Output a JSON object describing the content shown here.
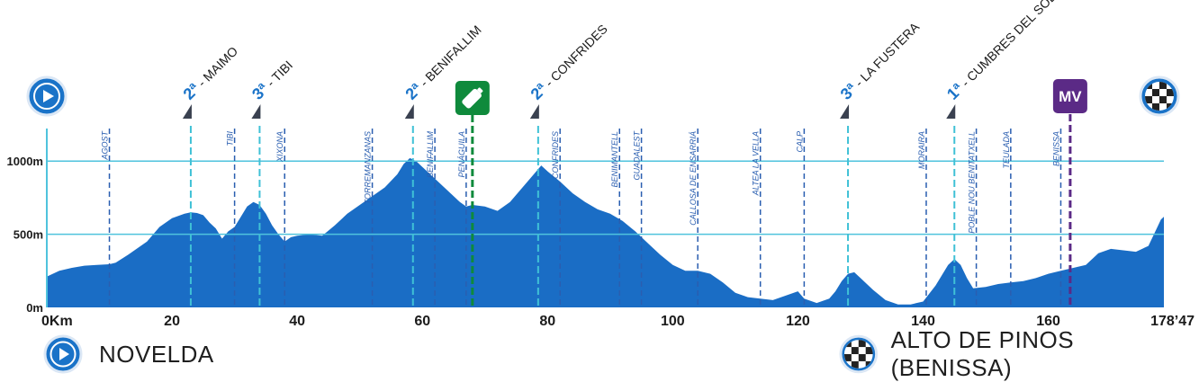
{
  "chart_data": {
    "type": "area",
    "title": "",
    "xlabel": "",
    "ylabel": "",
    "xlim": [
      0,
      178.47
    ],
    "ylim": [
      0,
      1200
    ],
    "x_ticks": [
      {
        "value": 0,
        "label": "0Km"
      },
      {
        "value": 20,
        "label": "20"
      },
      {
        "value": 40,
        "label": "40"
      },
      {
        "value": 60,
        "label": "60"
      },
      {
        "value": 80,
        "label": "80"
      },
      {
        "value": 100,
        "label": "100"
      },
      {
        "value": 120,
        "label": "120"
      },
      {
        "value": 140,
        "label": "140"
      },
      {
        "value": 160,
        "label": "160"
      },
      {
        "value": 178.47,
        "label": "178’47"
      }
    ],
    "y_ticks": [
      {
        "value": 0,
        "label": "0m"
      },
      {
        "value": 500,
        "label": "500m"
      },
      {
        "value": 1000,
        "label": "1000m"
      }
    ],
    "gridlines": [
      500,
      1000
    ],
    "profile": [
      [
        0,
        210
      ],
      [
        2,
        250
      ],
      [
        4,
        270
      ],
      [
        6,
        285
      ],
      [
        8,
        290
      ],
      [
        10,
        295
      ],
      [
        11,
        305
      ],
      [
        13,
        360
      ],
      [
        16,
        450
      ],
      [
        18,
        550
      ],
      [
        20,
        610
      ],
      [
        22,
        640
      ],
      [
        23,
        650
      ],
      [
        24,
        645
      ],
      [
        25,
        630
      ],
      [
        26,
        580
      ],
      [
        27,
        540
      ],
      [
        28,
        470
      ],
      [
        29,
        520
      ],
      [
        30,
        550
      ],
      [
        31,
        620
      ],
      [
        32,
        690
      ],
      [
        33,
        720
      ],
      [
        34,
        700
      ],
      [
        35,
        640
      ],
      [
        36,
        560
      ],
      [
        37,
        500
      ],
      [
        38,
        450
      ],
      [
        39,
        480
      ],
      [
        40,
        490
      ],
      [
        42,
        500
      ],
      [
        44,
        490
      ],
      [
        46,
        560
      ],
      [
        48,
        640
      ],
      [
        50,
        700
      ],
      [
        52,
        760
      ],
      [
        54,
        820
      ],
      [
        56,
        910
      ],
      [
        57,
        980
      ],
      [
        58,
        1020
      ],
      [
        59,
        1000
      ],
      [
        60,
        960
      ],
      [
        62,
        880
      ],
      [
        64,
        800
      ],
      [
        66,
        720
      ],
      [
        67,
        690
      ],
      [
        68,
        700
      ],
      [
        70,
        690
      ],
      [
        72,
        660
      ],
      [
        74,
        720
      ],
      [
        76,
        820
      ],
      [
        78,
        920
      ],
      [
        79,
        970
      ],
      [
        80,
        930
      ],
      [
        82,
        860
      ],
      [
        84,
        780
      ],
      [
        86,
        720
      ],
      [
        88,
        670
      ],
      [
        90,
        640
      ],
      [
        92,
        590
      ],
      [
        94,
        520
      ],
      [
        96,
        440
      ],
      [
        98,
        360
      ],
      [
        100,
        290
      ],
      [
        102,
        250
      ],
      [
        104,
        250
      ],
      [
        106,
        230
      ],
      [
        108,
        170
      ],
      [
        110,
        100
      ],
      [
        112,
        70
      ],
      [
        114,
        60
      ],
      [
        116,
        50
      ],
      [
        118,
        80
      ],
      [
        120,
        110
      ],
      [
        121,
        60
      ],
      [
        123,
        30
      ],
      [
        125,
        60
      ],
      [
        126,
        110
      ],
      [
        127,
        180
      ],
      [
        128,
        230
      ],
      [
        129,
        240
      ],
      [
        130,
        200
      ],
      [
        132,
        120
      ],
      [
        134,
        50
      ],
      [
        136,
        20
      ],
      [
        138,
        20
      ],
      [
        140,
        40
      ],
      [
        142,
        150
      ],
      [
        144,
        290
      ],
      [
        145,
        330
      ],
      [
        146,
        290
      ],
      [
        147,
        200
      ],
      [
        148,
        130
      ],
      [
        150,
        140
      ],
      [
        152,
        160
      ],
      [
        154,
        170
      ],
      [
        156,
        180
      ],
      [
        158,
        200
      ],
      [
        160,
        230
      ],
      [
        162,
        250
      ],
      [
        164,
        270
      ],
      [
        166,
        290
      ],
      [
        168,
        370
      ],
      [
        170,
        400
      ],
      [
        172,
        390
      ],
      [
        174,
        380
      ],
      [
        176,
        420
      ],
      [
        178,
        600
      ],
      [
        178.47,
        620
      ]
    ],
    "towns": [
      {
        "km": 10,
        "name": "AGOST"
      },
      {
        "km": 30,
        "name": "TIBI"
      },
      {
        "km": 38,
        "name": "XIXONA"
      },
      {
        "km": 52,
        "name": "TORREMANZANAS"
      },
      {
        "km": 62,
        "name": "BENIFALLIM"
      },
      {
        "km": 67,
        "name": "PENÁGUILA"
      },
      {
        "km": 82,
        "name": "CONFRIDES"
      },
      {
        "km": 91.5,
        "name": "BENIMANTELL"
      },
      {
        "km": 95,
        "name": "GUADALEST"
      },
      {
        "km": 104,
        "name": "CALLOSA DE ENSARRIÁ"
      },
      {
        "km": 114,
        "name": "ALTEA LA VELLA"
      },
      {
        "km": 121,
        "name": "CALP"
      },
      {
        "km": 140.5,
        "name": "MORAIRA"
      },
      {
        "km": 148.5,
        "name": "POBLE NOU BENITATXELL"
      },
      {
        "km": 154,
        "name": "TEULADA"
      },
      {
        "km": 162,
        "name": "BENISSA"
      }
    ],
    "climbs": [
      {
        "km": 23,
        "category": "2ª",
        "name": " - MAIMO"
      },
      {
        "km": 34,
        "category": "3ª",
        "name": " - TIBI"
      },
      {
        "km": 58.5,
        "category": "2ª",
        "name": " - BENIFALLIM"
      },
      {
        "km": 78.5,
        "category": "2ª",
        "name": " - CONFRIDES"
      },
      {
        "km": 128,
        "category": "3ª",
        "name": " - LA FUSTERA"
      },
      {
        "km": 145,
        "category": "1ª",
        "name": " - CUMBRES DEL SOL"
      }
    ],
    "feed_zone": {
      "km": 68
    },
    "special_marker": {
      "km": 163.5,
      "label": "MV"
    },
    "colors": {
      "profile_fill": "#1a6dc5",
      "gridline": "#4fc3dd",
      "climb_line": "#3fc1d6",
      "town_line": "#2a5eb0",
      "feed_green": "#0f8a3c",
      "mv_purple": "#5b2a86",
      "start_blue": "#1a73c8"
    }
  },
  "start": {
    "name": "NOVELDA"
  },
  "finish": {
    "name": "ALTO DE PINOS (BENISSA)"
  }
}
